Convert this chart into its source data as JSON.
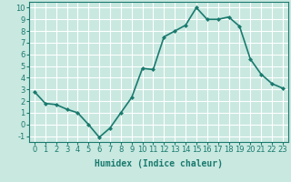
{
  "x": [
    0,
    1,
    2,
    3,
    4,
    5,
    6,
    7,
    8,
    9,
    10,
    11,
    12,
    13,
    14,
    15,
    16,
    17,
    18,
    19,
    20,
    21,
    22,
    23
  ],
  "y": [
    2.8,
    1.8,
    1.7,
    1.3,
    1.0,
    0.0,
    -1.1,
    -0.3,
    1.0,
    2.3,
    4.8,
    4.7,
    7.5,
    8.0,
    8.5,
    10.0,
    9.0,
    9.0,
    9.2,
    8.4,
    5.6,
    4.3,
    3.5,
    3.1
  ],
  "line_color": "#1a7a6e",
  "marker": "D",
  "marker_size": 2.0,
  "background_color": "#c8e8e0",
  "grid_color": "#ffffff",
  "xlabel": "Humidex (Indice chaleur)",
  "xlabel_fontsize": 7,
  "xlim": [
    -0.5,
    23.5
  ],
  "ylim": [
    -1.5,
    10.5
  ],
  "yticks": [
    -1,
    0,
    1,
    2,
    3,
    4,
    5,
    6,
    7,
    8,
    9,
    10
  ],
  "xticks": [
    0,
    1,
    2,
    3,
    4,
    5,
    6,
    7,
    8,
    9,
    10,
    11,
    12,
    13,
    14,
    15,
    16,
    17,
    18,
    19,
    20,
    21,
    22,
    23
  ],
  "tick_fontsize": 6,
  "line_width": 1.2
}
